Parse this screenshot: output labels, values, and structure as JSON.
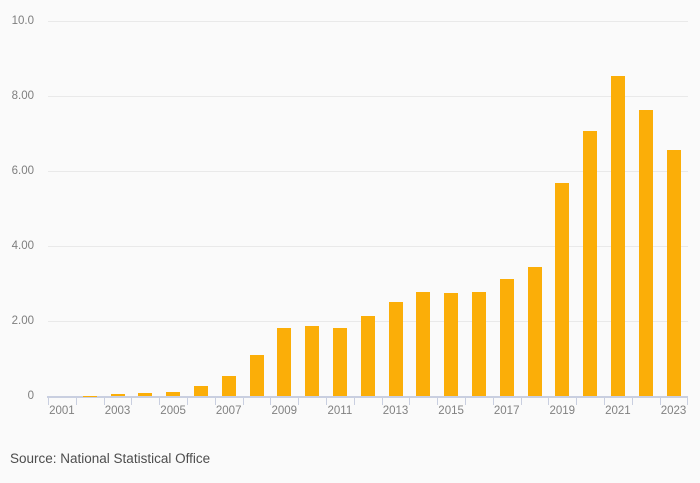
{
  "chart_data": {
    "type": "bar",
    "categories": [
      "2001",
      "2002",
      "2003",
      "2004",
      "2005",
      "2006",
      "2007",
      "2008",
      "2009",
      "2010",
      "2011",
      "2012",
      "2013",
      "2014",
      "2015",
      "2016",
      "2017",
      "2018",
      "2019",
      "2020",
      "2021",
      "2022",
      "2023"
    ],
    "values": [
      0.0,
      0.01,
      0.05,
      0.09,
      0.12,
      0.27,
      0.53,
      1.09,
      1.81,
      1.87,
      1.81,
      2.13,
      2.51,
      2.78,
      2.74,
      2.77,
      3.13,
      3.44,
      5.67,
      7.08,
      8.53,
      7.64,
      6.55
    ],
    "title": "",
    "xlabel": "",
    "ylabel": "",
    "ylim": [
      0,
      10
    ],
    "y_ticks": [
      0,
      2,
      4,
      6,
      8,
      10
    ],
    "y_tick_labels": [
      "0",
      "2.00",
      "4.00",
      "6.00",
      "8.00",
      "10.0"
    ],
    "x_tick_labels": [
      "2001",
      "2003",
      "2005",
      "2007",
      "2009",
      "2011",
      "2013",
      "2015",
      "2017",
      "2019",
      "2021",
      "2023"
    ],
    "grid": true,
    "legend": "none",
    "bar_color": "#FBAE08"
  },
  "colors": {
    "background": "#FAFAFA",
    "bar": "#FBAE08",
    "gridline": "#E9E9E9",
    "axis": "#C9CFE0",
    "axis_label_text": "#7E7E7E",
    "source_text": "#4D4D4D"
  },
  "source": {
    "label": "Source: National Statistical Office"
  }
}
